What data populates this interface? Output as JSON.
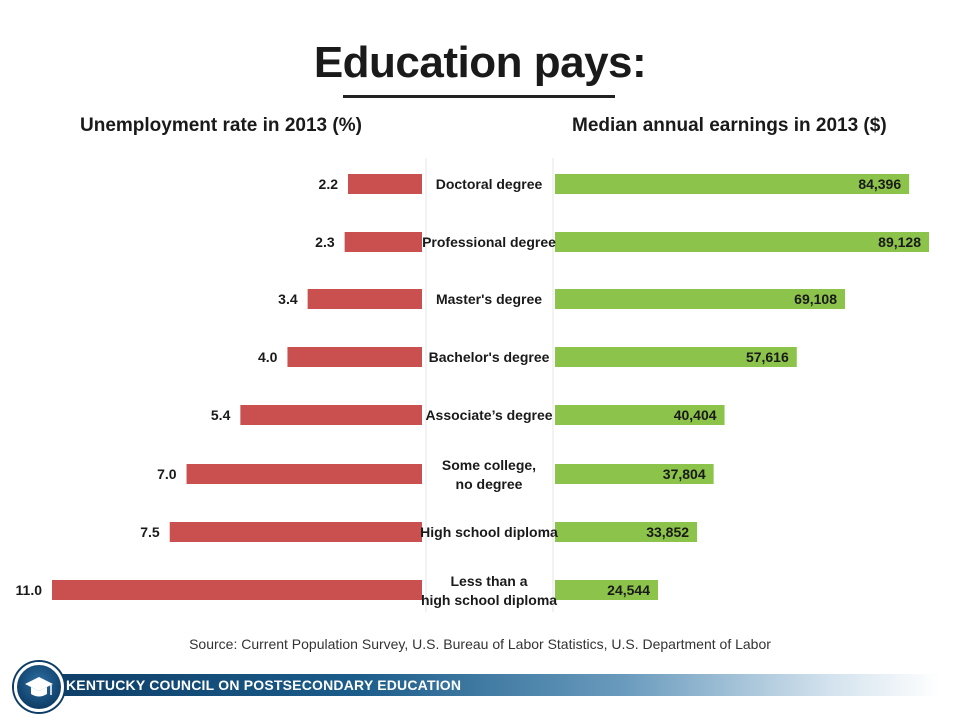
{
  "title": "Education pays:",
  "left_panel": {
    "title": "Unemployment rate in 2013 (%)"
  },
  "right_panel": {
    "title": "Median annual earnings in 2013 ($)"
  },
  "source": "Source: Current Population Survey, U.S. Bureau of Labor Statistics, U.S. Department of Labor",
  "footer": {
    "org": "KENTUCKY COUNCIL ON POSTSECONDARY EDUCATION",
    "logo_icon": "graduation-cap-icon"
  },
  "colors": {
    "unemployment": "#c9504f",
    "earnings": "#8cc34a",
    "footer": "#0d3d66"
  },
  "chart_data": [
    {
      "type": "bar",
      "orientation": "horizontal",
      "direction": "right-to-left",
      "title": "Unemployment rate in 2013 (%)",
      "categories": [
        [
          "Doctoral degree"
        ],
        [
          "Professional degree"
        ],
        [
          "Master's degree"
        ],
        [
          "Bachelor's degree"
        ],
        [
          "Associate’s degree"
        ],
        [
          "Some college,",
          "no degree"
        ],
        [
          "High school diploma"
        ],
        [
          "Less than a",
          "high school diploma"
        ]
      ],
      "values": [
        2.2,
        2.3,
        3.4,
        4.0,
        5.4,
        7.0,
        7.5,
        11.0
      ],
      "labels": [
        "2.2",
        "2.3",
        "3.4",
        "4.0",
        "5.4",
        "7.0",
        "7.5",
        "11.0"
      ],
      "color": "#c9504f"
    },
    {
      "type": "bar",
      "orientation": "horizontal",
      "direction": "left-to-right",
      "title": "Median annual earnings in 2013 ($)",
      "categories": [
        [
          "Doctoral degree"
        ],
        [
          "Professional degree"
        ],
        [
          "Master's degree"
        ],
        [
          "Bachelor's degree"
        ],
        [
          "Associate’s degree"
        ],
        [
          "Some college,",
          "no degree"
        ],
        [
          "High school diploma"
        ],
        [
          "Less than a",
          "high school diploma"
        ]
      ],
      "values": [
        84396,
        89128,
        69108,
        57616,
        40404,
        37804,
        33852,
        24544
      ],
      "labels": [
        "84,396",
        "89,128",
        "69,108",
        "57,616",
        "40,404",
        "37,804",
        "33,852",
        "24,544"
      ],
      "color": "#8cc34a"
    }
  ]
}
